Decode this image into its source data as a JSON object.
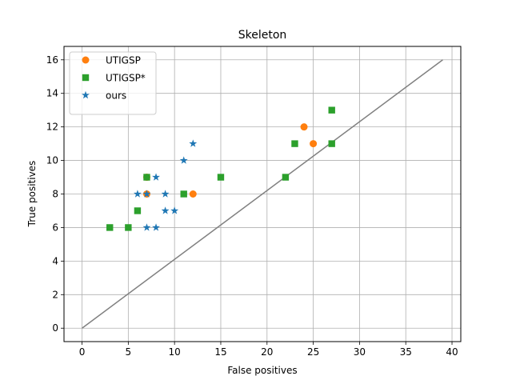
{
  "chart_data": {
    "type": "scatter",
    "title": "Skeleton",
    "xlabel": "False positives",
    "ylabel": "True positives",
    "xlim": [
      -1.95,
      40.95
    ],
    "ylim": [
      -0.8,
      16.8
    ],
    "xticks": [
      0,
      5,
      10,
      15,
      20,
      25,
      30,
      35,
      40
    ],
    "yticks": [
      0,
      2,
      4,
      6,
      8,
      10,
      12,
      14,
      16
    ],
    "grid": true,
    "legend_position": "top-left",
    "reference_line": {
      "x": [
        0,
        39
      ],
      "y": [
        0,
        16
      ],
      "color": "#808080"
    },
    "series": [
      {
        "name": "UTIGSP",
        "marker": "circle",
        "color": "#ff7f0e",
        "points": [
          [
            7,
            8
          ],
          [
            12,
            8
          ],
          [
            24,
            12
          ],
          [
            25,
            11
          ],
          [
            7,
            9
          ]
        ]
      },
      {
        "name": "UTIGSP*",
        "marker": "square",
        "color": "#2ca02c",
        "points": [
          [
            3,
            6
          ],
          [
            5,
            6
          ],
          [
            6,
            7
          ],
          [
            7,
            9
          ],
          [
            11,
            8
          ],
          [
            15,
            9
          ],
          [
            22,
            9
          ],
          [
            23,
            11
          ],
          [
            27,
            11
          ],
          [
            27,
            13
          ]
        ]
      },
      {
        "name": "ours",
        "marker": "star",
        "color": "#1f77b4",
        "points": [
          [
            6,
            8
          ],
          [
            7,
            8
          ],
          [
            7,
            6
          ],
          [
            8,
            6
          ],
          [
            8,
            9
          ],
          [
            9,
            7
          ],
          [
            9,
            8
          ],
          [
            10,
            7
          ],
          [
            11,
            10
          ],
          [
            12,
            11
          ]
        ]
      }
    ]
  }
}
